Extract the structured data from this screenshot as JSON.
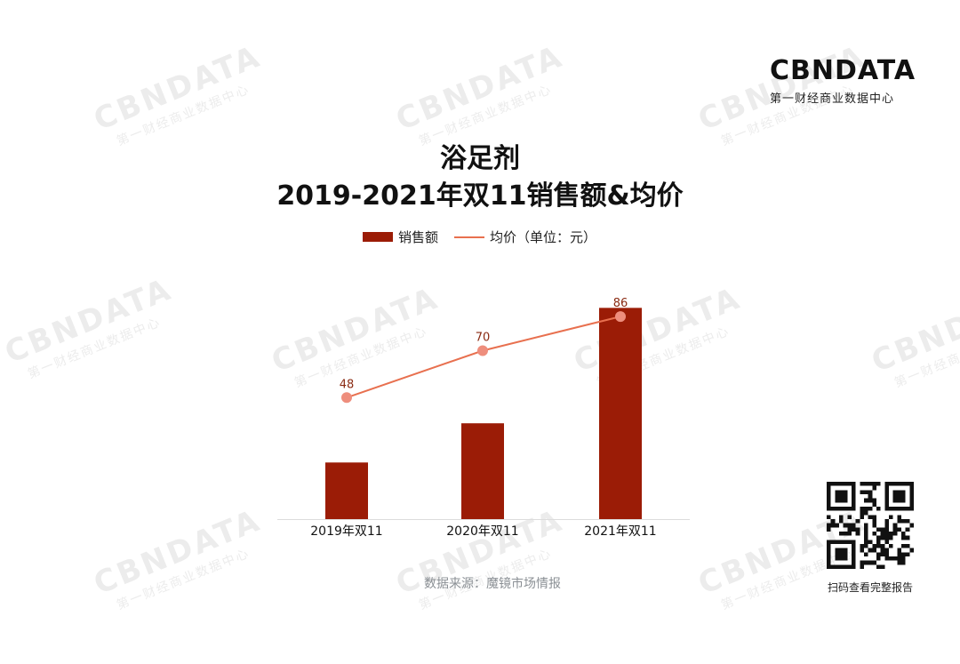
{
  "logo": {
    "main": "CBNDATA",
    "sub": "第一财经商业数据中心"
  },
  "watermark": {
    "main": "CBNDATA",
    "sub": "第一财经商业数据中心"
  },
  "chart_data": {
    "type": "bar+line",
    "title": "浴足剂",
    "subtitle": "2019-2021年双11销售额&均价",
    "categories": [
      "2019年双11",
      "2020年双11",
      "2021年双11"
    ],
    "series": [
      {
        "name": "销售额",
        "type": "bar",
        "color": "#9b1c06",
        "values": [
          26,
          44,
          97
        ]
      },
      {
        "name": "均价（单位：元）",
        "type": "line",
        "color": "#e8704f",
        "values": [
          48,
          70,
          86
        ],
        "labels": [
          "48",
          "70",
          "86"
        ]
      }
    ],
    "grid": false,
    "legend": "top-center"
  },
  "source": "数据来源：魔镜市场情报",
  "qr_caption": "扫码查看完整报告"
}
